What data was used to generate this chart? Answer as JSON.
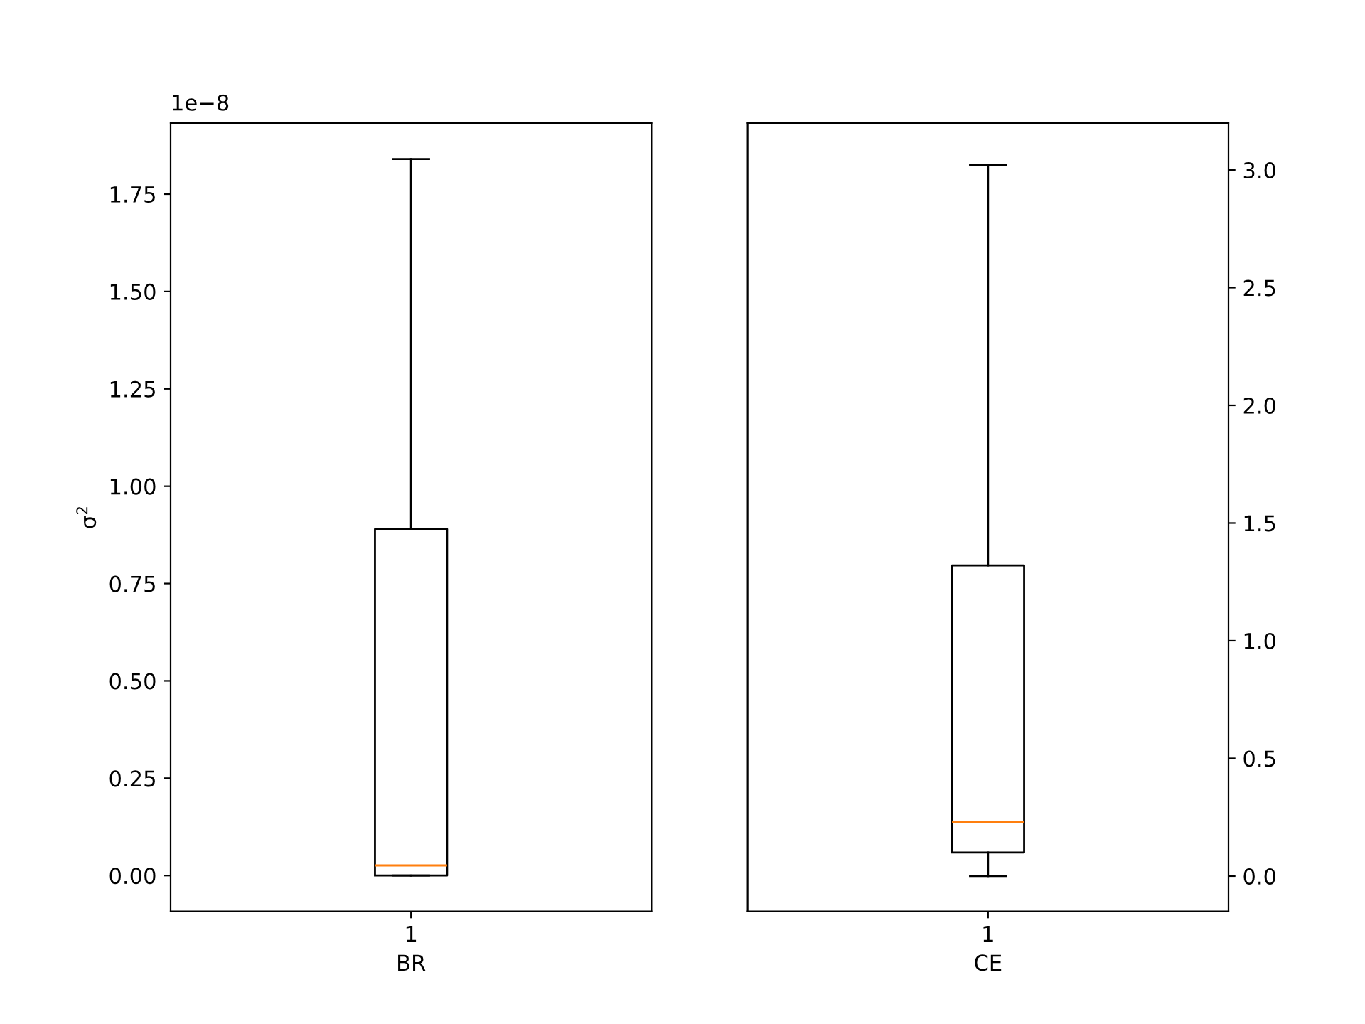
{
  "chart_data": [
    {
      "type": "box",
      "categories": [
        "1"
      ],
      "xlabel": "BR",
      "ylabel": "σ$^{2}$",
      "annotations": [
        "1e−8"
      ],
      "boxes": [
        {
          "low": 0.0,
          "q1": 0.0,
          "median": 0.026,
          "q3": 0.89,
          "high": 1.84
        }
      ],
      "ylim": [
        -0.092,
        1.933
      ],
      "yticks": [
        {
          "value": 0,
          "label": "0.00"
        },
        0.25,
        {
          "value": 0.5,
          "label": "0.50"
        },
        0.75,
        {
          "value": 1,
          "label": "1.00"
        },
        1.25,
        {
          "value": 1.5,
          "label": "1.50"
        },
        1.75
      ],
      "color": "#000000",
      "grid": false
    },
    {
      "type": "box",
      "categories": [
        "1"
      ],
      "xlabel": "CE",
      "boxes": [
        {
          "low": 0.0,
          "q1": 0.1,
          "median": 0.23,
          "q3": 1.32,
          "high": 3.02
        }
      ],
      "ylim": [
        -0.15,
        3.2
      ],
      "yticks": [
        {
          "value": 0,
          "label": "0.0"
        },
        {
          "value": 0.5,
          "label": "0.5"
        },
        {
          "value": 1,
          "label": "1.0"
        },
        {
          "value": 1.5,
          "label": "1.5"
        },
        {
          "value": 2,
          "label": "2.0"
        },
        {
          "value": 2.5,
          "label": "2.5"
        },
        {
          "value": 3,
          "label": "3.0"
        }
      ],
      "color": "#000000",
      "grid": false
    }
  ]
}
